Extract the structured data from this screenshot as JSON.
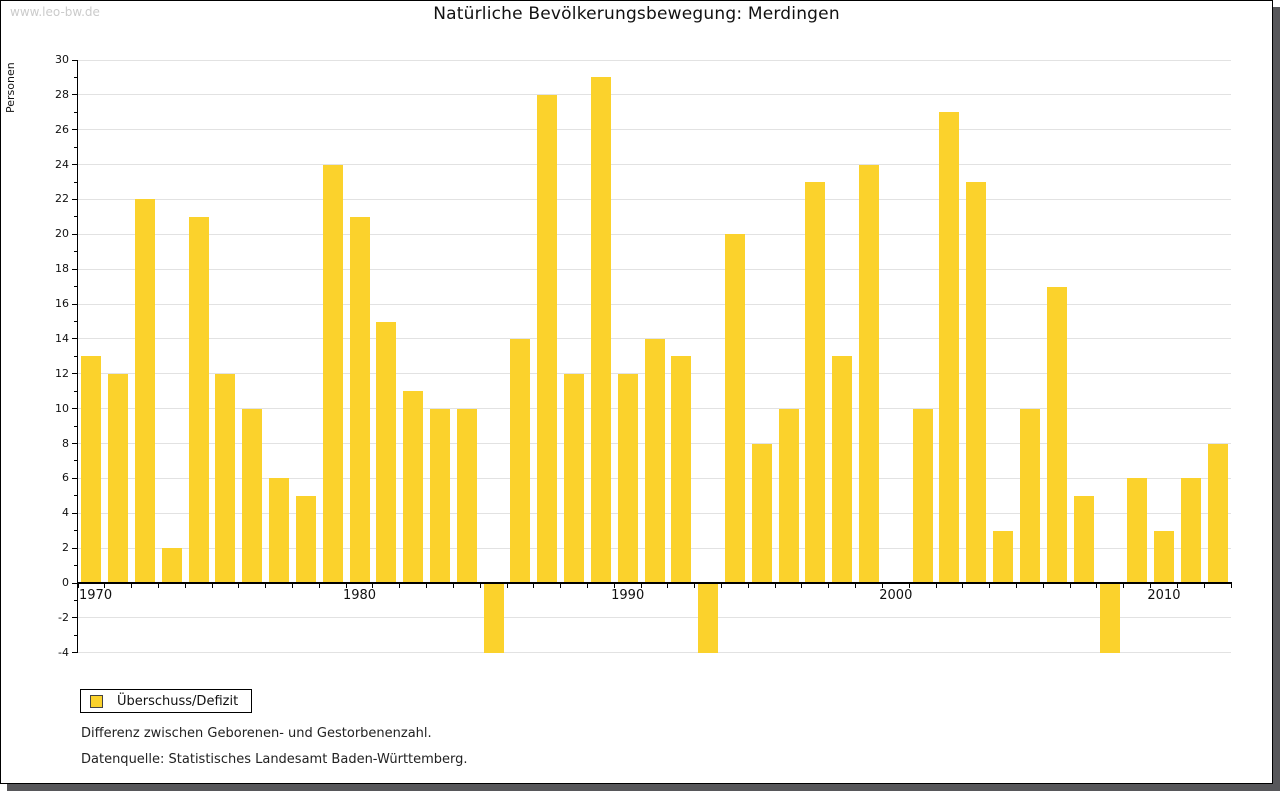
{
  "watermark": "www.leo-bw.de",
  "title": "Natürliche Bevölkerungsbewegung: Merdingen",
  "legend": {
    "label": "Überschuss/Defizit"
  },
  "notes": [
    "Differenz zwischen Geborenen- und Gestorbenenzahl.",
    "Datenquelle: Statistisches Landesamt Baden-Württemberg."
  ],
  "colors": {
    "bar": "#fbd22c",
    "grid": "#e2e2e2",
    "axis": "#000000",
    "shadow": "#57575a",
    "watermark": "#cbcbcb",
    "swatch_border": "#444444"
  },
  "chart_data": {
    "type": "bar",
    "title": "Natürliche Bevölkerungsbewegung: Merdingen",
    "xlabel": "",
    "ylabel": "Personen",
    "series_name": "Überschuss/Defizit",
    "ylim": [
      -4,
      30
    ],
    "ytick_label_step": 2,
    "ytick_minor_step": 1,
    "grid": true,
    "legend_position": "bottom-left",
    "xticks_labeled": [
      1970,
      1980,
      1990,
      2000,
      2010
    ],
    "x": [
      1970,
      1971,
      1972,
      1973,
      1974,
      1975,
      1976,
      1977,
      1978,
      1979,
      1980,
      1981,
      1982,
      1983,
      1984,
      1985,
      1986,
      1987,
      1988,
      1989,
      1990,
      1991,
      1992,
      1993,
      1994,
      1995,
      1996,
      1997,
      1998,
      1999,
      2000,
      2001,
      2002,
      2003,
      2004,
      2005,
      2006,
      2007,
      2008,
      2009,
      2010,
      2011,
      2012
    ],
    "values": [
      13,
      12,
      22,
      2,
      21,
      12,
      10,
      6,
      5,
      24,
      21,
      15,
      11,
      10,
      10,
      -4,
      14,
      28,
      12,
      29,
      12,
      14,
      13,
      -4,
      20,
      8,
      10,
      23,
      13,
      24,
      0,
      10,
      27,
      23,
      3,
      10,
      17,
      5,
      -4,
      6,
      3,
      6,
      8
    ]
  }
}
